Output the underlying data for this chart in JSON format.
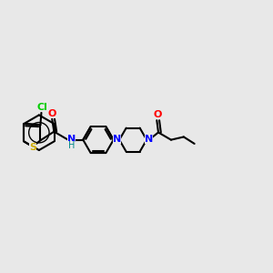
{
  "bg_color": "#e8e8e8",
  "bond_color": "#000000",
  "S_color": "#ccaa00",
  "Cl_color": "#00cc00",
  "N_color": "#0000ff",
  "O_color": "#ff0000",
  "NH_color": "#008888",
  "lw": 1.5,
  "figsize": [
    3.0,
    3.0
  ],
  "dpi": 100,
  "xlim": [
    0,
    14
  ],
  "ylim": [
    0,
    10
  ]
}
